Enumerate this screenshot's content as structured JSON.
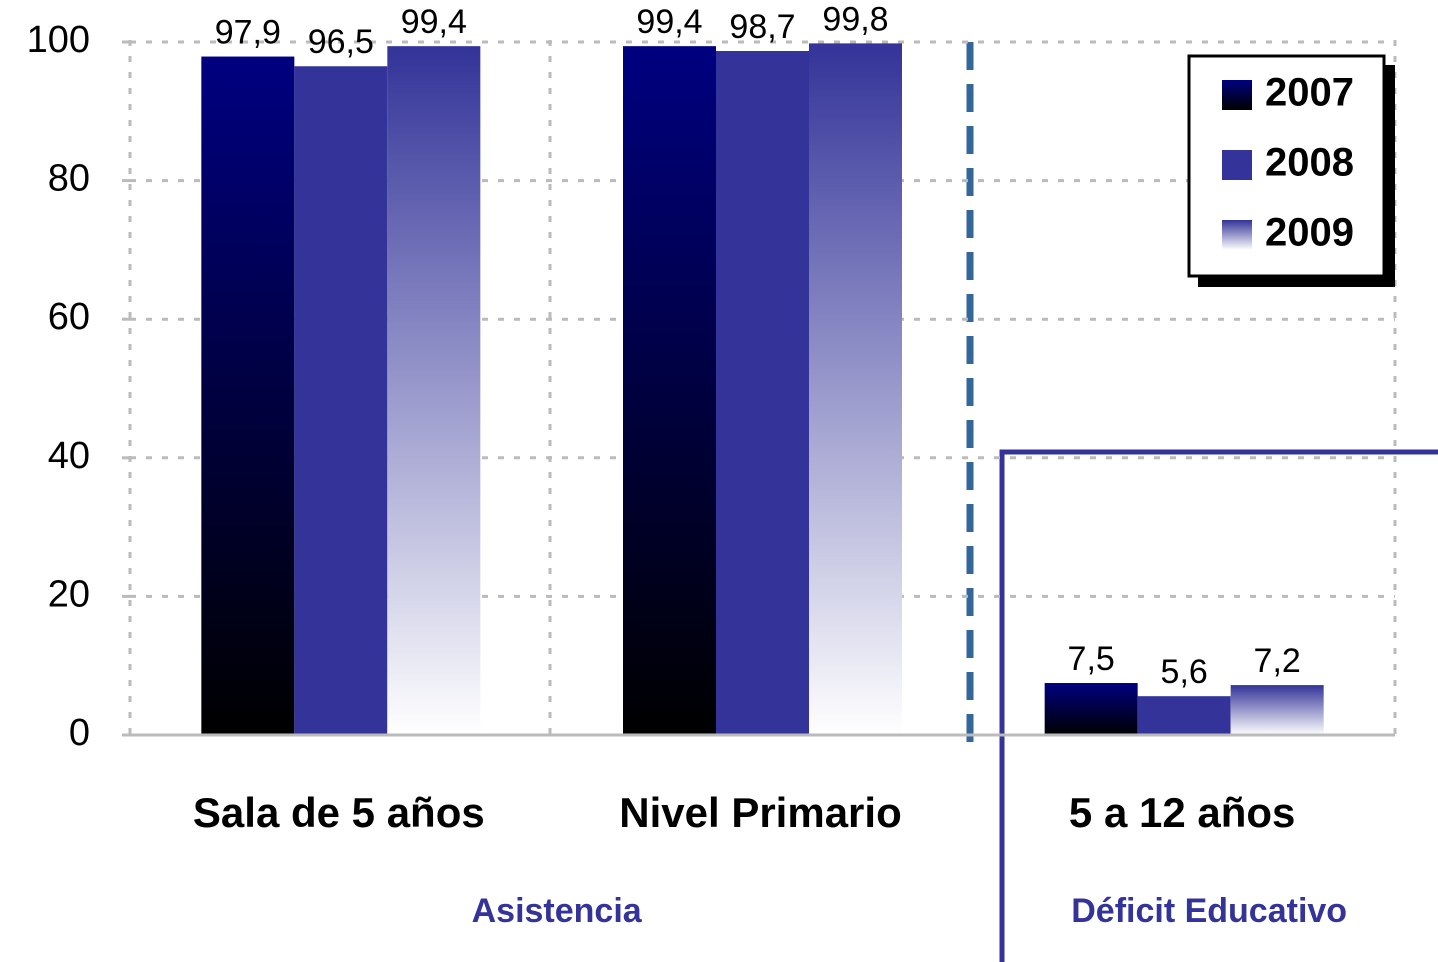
{
  "chart_data": {
    "type": "bar",
    "categories": [
      "Sala de 5 años",
      "Nivel Primario",
      "5 a 12 años"
    ],
    "series": [
      {
        "name": "2007",
        "color": "#000080",
        "gradient_to": "#000000",
        "values": [
          97.9,
          99.4,
          7.5
        ],
        "value_labels": [
          "97,9",
          "99,4",
          "7,5"
        ]
      },
      {
        "name": "2008",
        "color": "#333399",
        "values": [
          96.5,
          98.7,
          5.6
        ],
        "value_labels": [
          "96,5",
          "98,7",
          "5,6"
        ]
      },
      {
        "name": "2009",
        "color": "#333399",
        "gradient_to": "#ffffff",
        "values": [
          99.4,
          99.8,
          7.2
        ],
        "value_labels": [
          "99,4",
          "99,8",
          "7,2"
        ]
      }
    ],
    "groups": [
      "Asistencia",
      "Déficit Educativo"
    ],
    "ylim": [
      0,
      100
    ],
    "yticks": [
      0,
      20,
      40,
      60,
      80,
      100
    ],
    "grid": true,
    "legend": "top-right"
  }
}
